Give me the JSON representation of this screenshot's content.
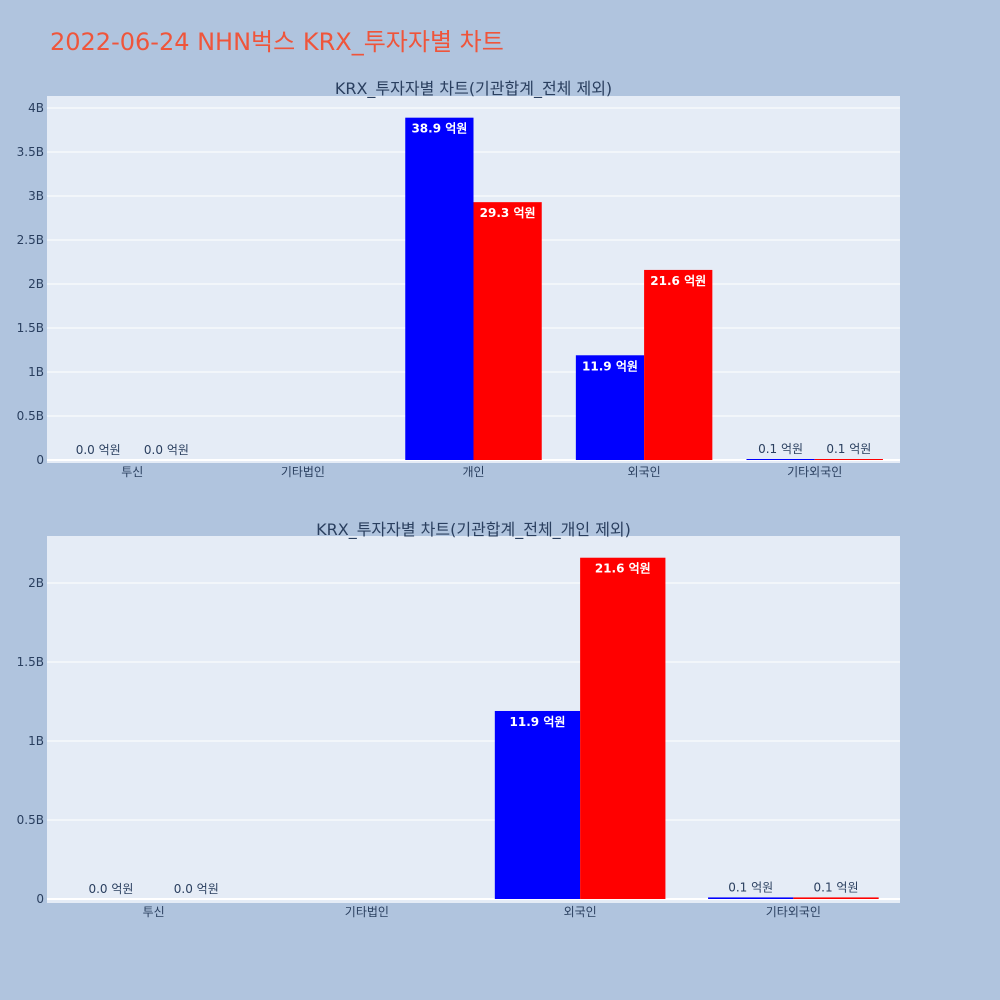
{
  "title": "2022-06-24 NHN벅스 KRX_투자자별 차트",
  "colors": {
    "page_bg": "#b0c4de",
    "plot_bg": "#e5ecf6",
    "title": "#ef553b",
    "buy": "#0000ff",
    "sell": "#ff0000",
    "text": "#2a3f5f"
  },
  "chart_data": [
    {
      "type": "bar",
      "title": "KRX_투자자별 차트(기관합계_전체 제외)",
      "categories": [
        "투신",
        "기타법인",
        "개인",
        "외국인",
        "기타외국인"
      ],
      "series": [
        {
          "values": [
            0,
            0,
            3890000000,
            1190000000,
            10000000
          ],
          "labels": [
            "0.0 억원",
            "",
            "38.9 억원",
            "11.9 억원",
            "0.1 억원"
          ]
        },
        {
          "values": [
            0,
            0,
            2930000000,
            2160000000,
            10000000
          ],
          "labels": [
            "0.0 억원",
            "",
            "29.3 억원",
            "21.6 억원",
            "0.1 억원"
          ]
        }
      ],
      "yticks": [
        0,
        500000000,
        1000000000,
        1500000000,
        2000000000,
        2500000000,
        3000000000,
        3500000000,
        4000000000
      ],
      "ytick_labels": [
        "0",
        "0.5B",
        "1B",
        "1.5B",
        "2B",
        "2.5B",
        "3B",
        "3.5B",
        "4B"
      ],
      "ylim": [
        0,
        4100000000
      ],
      "grid": true
    },
    {
      "type": "bar",
      "title": "KRX_투자자별 차트(기관합계_전체_개인 제외)",
      "categories": [
        "투신",
        "기타법인",
        "외국인",
        "기타외국인"
      ],
      "series": [
        {
          "values": [
            0,
            0,
            1190000000,
            10000000
          ],
          "labels": [
            "0.0 억원",
            "",
            "11.9 억원",
            "0.1 억원"
          ]
        },
        {
          "values": [
            0,
            0,
            2160000000,
            10000000
          ],
          "labels": [
            "0.0 억원",
            "",
            "21.6 억원",
            "0.1 억원"
          ]
        }
      ],
      "yticks": [
        0,
        500000000,
        1000000000,
        1500000000,
        2000000000
      ],
      "ytick_labels": [
        "0",
        "0.5B",
        "1B",
        "1.5B",
        "2B"
      ],
      "ylim": [
        0,
        2300000000
      ],
      "grid": true
    }
  ]
}
